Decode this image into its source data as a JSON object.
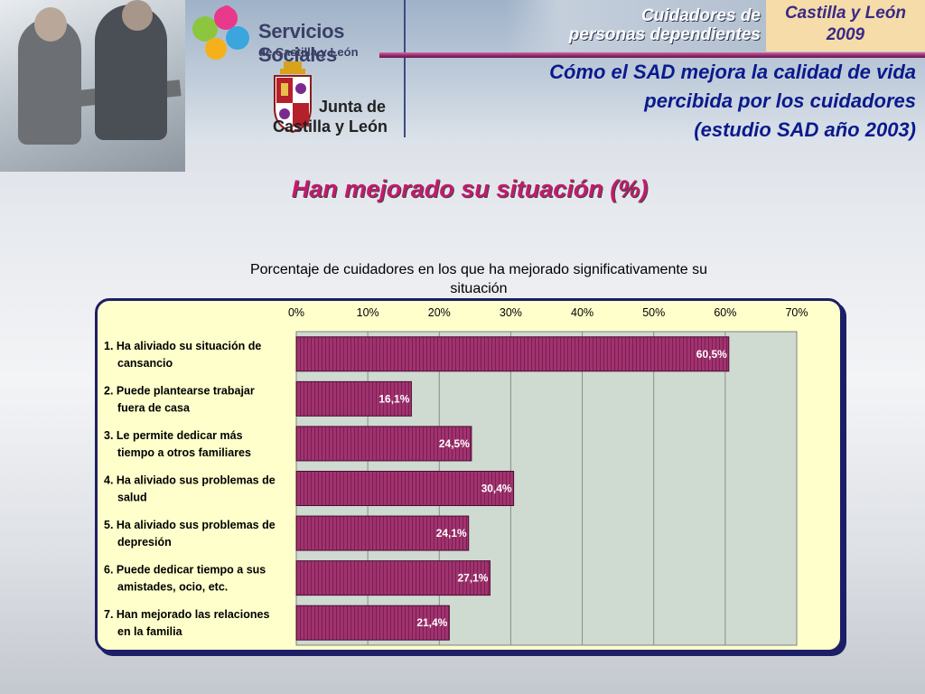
{
  "header": {
    "cuidadores_line1": "Cuidadores de",
    "cuidadores_line2": "personas dependientes",
    "region_line1": "Castilla y León",
    "region_line2": "2009",
    "sad_title_line1": "Cómo el SAD mejora la calidad de vida",
    "sad_title_line2": "percibida por los cuidadores",
    "sad_title_line3": "(estudio SAD año 2003)"
  },
  "logos": {
    "servicios_title": "Servicios Sociales",
    "servicios_sub": "de Castilla y León",
    "junta_line1": "Junta de",
    "junta_line2": "Castilla y León",
    "puzzle_icon": "puzzle-logo-icon",
    "shield_icon": "coat-of-arms-icon"
  },
  "main_heading": "Han mejorado su situación (%)",
  "colors": {
    "bar_fill": "#a0336f",
    "bar_stroke": "#4a0d33",
    "plot_bg": "#cfdad1",
    "panel_bg": "#ffffcc",
    "heading": "#c41a6e"
  },
  "chart_data": {
    "type": "bar",
    "orientation": "horizontal",
    "title": "Porcentaje de cuidadores en los que ha mejorado significativamente su situación",
    "title_line1": "Porcentaje de cuidadores en los que ha mejorado significativamente su",
    "title_line2": "situación",
    "categories": [
      [
        "1. Ha aliviado su situación de",
        "cansancio"
      ],
      [
        "2. Puede plantearse trabajar",
        "fuera de casa"
      ],
      [
        "3. Le permite dedicar más",
        "tiempo a otros familiares"
      ],
      [
        "4. Ha aliviado sus problemas de",
        "salud"
      ],
      [
        "5. Ha aliviado sus problemas de",
        "depresión"
      ],
      [
        "6. Puede dedicar tiempo a sus",
        "amistades, ocio, etc."
      ],
      [
        "7. Han mejorado las relaciones",
        "en la familia"
      ]
    ],
    "values": [
      60.5,
      16.1,
      24.5,
      30.4,
      24.1,
      27.1,
      21.4
    ],
    "value_labels": [
      "60,5%",
      "16,1%",
      "24,5%",
      "30,4%",
      "24,1%",
      "27,1%",
      "21,4%"
    ],
    "xlim": [
      0,
      70
    ],
    "x_ticks": [
      0,
      10,
      20,
      30,
      40,
      50,
      60,
      70
    ],
    "x_tick_labels": [
      "0%",
      "10%",
      "20%",
      "30%",
      "40%",
      "50%",
      "60%",
      "70%"
    ],
    "x_axis_position": "top",
    "grid": true,
    "legend": "none"
  }
}
